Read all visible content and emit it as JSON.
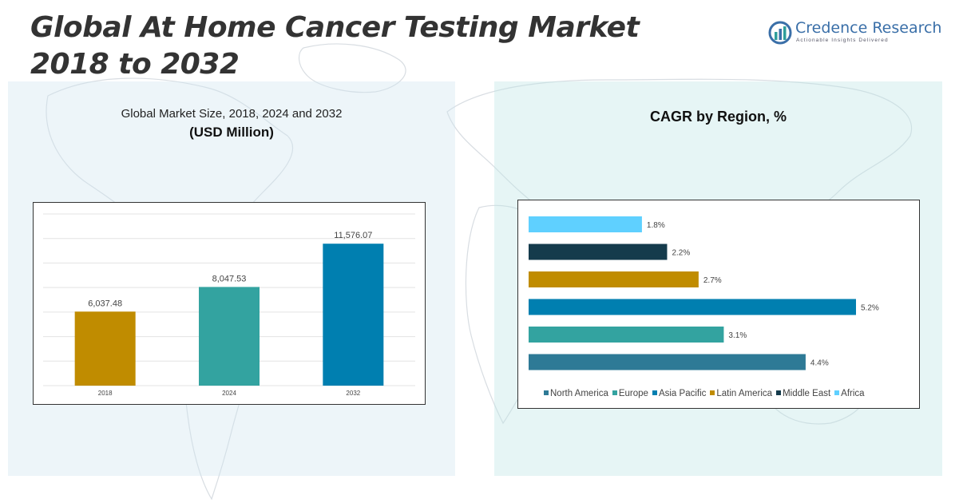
{
  "title": {
    "line1": "Global At Home Cancer Testing Market",
    "line2": "2018 to 2032"
  },
  "logo": {
    "name": "Credence Research",
    "tagline": "Actionable Insights Delivered"
  },
  "icons": [
    "credence-logo-icon",
    "world-map-background"
  ],
  "colors": {
    "panel_left": "#e3eef6",
    "panel_right": "#dbf0f0",
    "bar_2018": "#c08c00",
    "bar_2024": "#33a3a0",
    "bar_2032": "#007fb0"
  },
  "chart_data": [
    {
      "type": "bar",
      "title": "Global Market Size, 2018, 2024 and 2032",
      "subtitle": "(USD Million)",
      "categories": [
        "2018",
        "2024",
        "2032"
      ],
      "values": [
        6037.48,
        8047.53,
        11576.07
      ],
      "value_labels": [
        "6,037.48",
        "8,047.53",
        "11,576.07"
      ],
      "colors": [
        "#c08c00",
        "#33a3a0",
        "#007fb0"
      ],
      "ylim": [
        0,
        14000
      ],
      "grid": true,
      "legend": "none"
    },
    {
      "type": "bar",
      "orientation": "horizontal",
      "title": "CAGR by Region, %",
      "categories": [
        "Africa",
        "Middle East",
        "Latin America",
        "Asia Pacific",
        "Europe",
        "North America"
      ],
      "values": [
        1.8,
        2.2,
        2.7,
        5.2,
        3.1,
        4.4
      ],
      "value_labels": [
        "1.8%",
        "2.2%",
        "2.7%",
        "5.2%",
        "3.1%",
        "4.4%"
      ],
      "colors": [
        "#5fd0ff",
        "#153b4c",
        "#c08c00",
        "#007fb0",
        "#33a3a0",
        "#2e7a96"
      ],
      "xlim": [
        0,
        5.2
      ],
      "legend": "bottom",
      "legend_entries": [
        "North America",
        "Europe",
        "Asia Pacific",
        "Latin America",
        "Middle East",
        "Africa"
      ],
      "legend_colors": [
        "#2e7a96",
        "#33a3a0",
        "#007fb0",
        "#c08c00",
        "#153b4c",
        "#5fd0ff"
      ]
    }
  ]
}
